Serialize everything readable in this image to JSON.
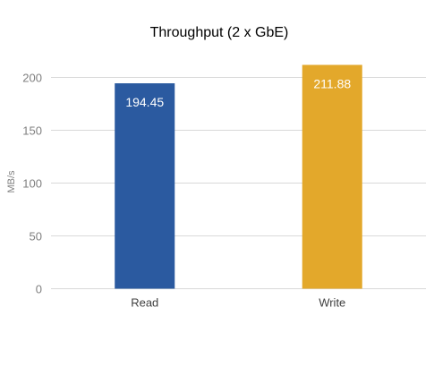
{
  "chart_data": {
    "type": "bar",
    "title": "Throughput (2 x GbE)",
    "xlabel": "",
    "ylabel": "MB/s",
    "categories": [
      "Read",
      "Write"
    ],
    "values": [
      194.45,
      211.88
    ],
    "value_labels": [
      "194.45",
      "211.88"
    ],
    "colors": [
      "#2b5aa0",
      "#e3a82b"
    ],
    "ylim": [
      0,
      230
    ],
    "yticks": [
      0,
      50,
      100,
      150,
      200
    ],
    "ytick_labels": [
      "0",
      "50",
      "100",
      "150",
      "200"
    ],
    "grid": true,
    "legend": "none"
  }
}
